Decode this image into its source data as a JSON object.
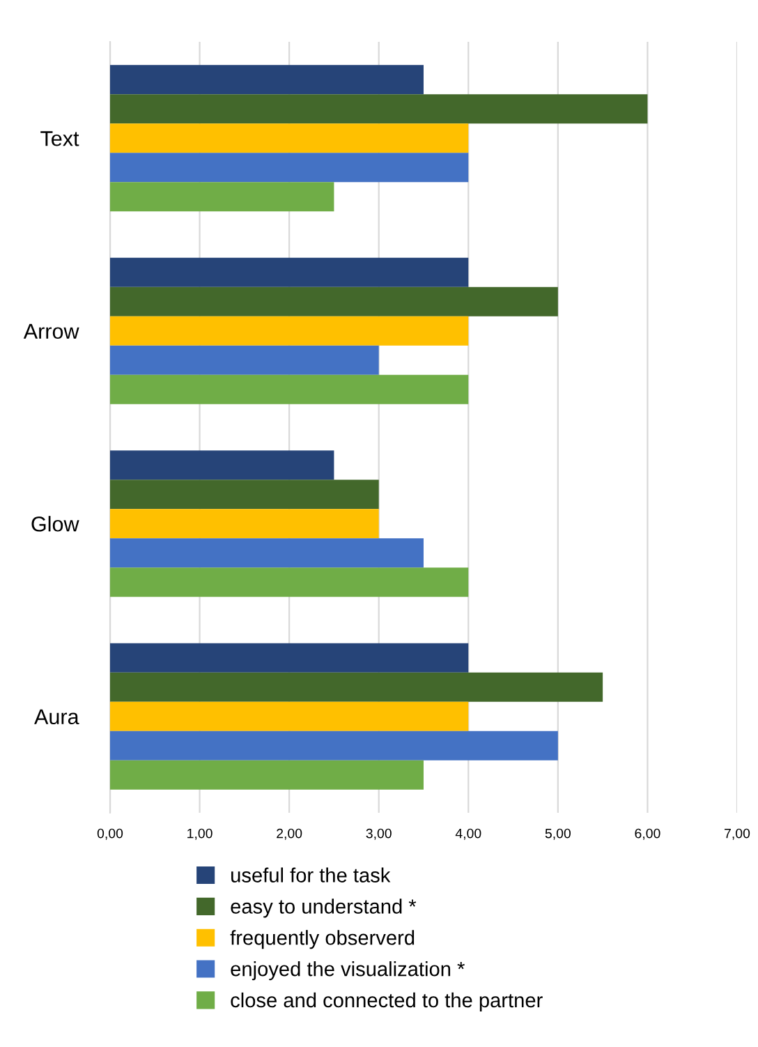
{
  "chart_data": {
    "type": "bar",
    "orientation": "horizontal",
    "categories": [
      "Text",
      "Arrow",
      "Glow",
      "Aura"
    ],
    "series": [
      {
        "name": "useful for the task",
        "color": "#264478",
        "values": [
          3.5,
          4,
          2.5,
          4
        ]
      },
      {
        "name": "easy to understand *",
        "color": "#43682b",
        "values": [
          6,
          5,
          3,
          5.5
        ]
      },
      {
        "name": "frequently observerd",
        "color": "#ffc000",
        "values": [
          4,
          4,
          3,
          4
        ]
      },
      {
        "name": "enjoyed the visualization *",
        "color": "#4472c4",
        "values": [
          4,
          3,
          3.5,
          5
        ]
      },
      {
        "name": "close and connected to the partner",
        "color": "#70ad47",
        "values": [
          2.5,
          4,
          4,
          3.5
        ]
      }
    ],
    "xlim": [
      0,
      7
    ],
    "xticks": [
      {
        "value": 0,
        "label": "0,00"
      },
      {
        "value": 1,
        "label": "1,00"
      },
      {
        "value": 2,
        "label": "2,00"
      },
      {
        "value": 3,
        "label": "3,00"
      },
      {
        "value": 4,
        "label": "4,00"
      },
      {
        "value": 5,
        "label": "5,00"
      },
      {
        "value": 6,
        "label": "6,00"
      },
      {
        "value": 7,
        "label": "7,00"
      }
    ],
    "grid": "x",
    "legend": "bottom"
  }
}
